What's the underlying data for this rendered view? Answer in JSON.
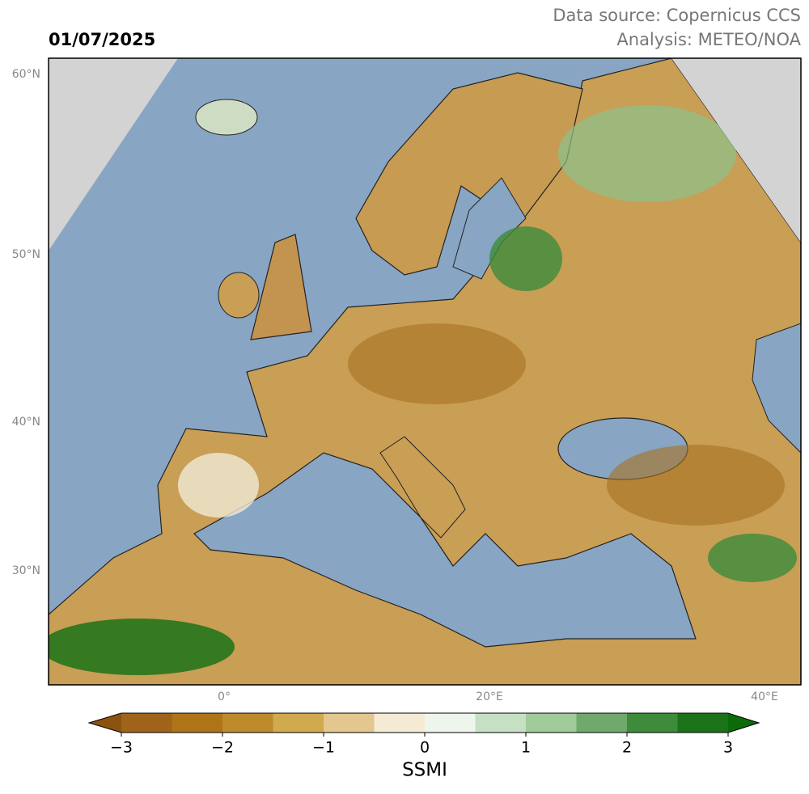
{
  "header": {
    "date": "01/07/2025",
    "source": "Data source: Copernicus CCS",
    "analysis": "Analysis: METEO/NOA"
  },
  "map": {
    "lat_labels": [
      "60°N",
      "50°N",
      "40°N",
      "30°N"
    ],
    "lon_labels": [
      "0°",
      "20°E",
      "40°E"
    ]
  },
  "colorbar": {
    "label": "SSMI",
    "range": [
      -3,
      3
    ],
    "ticks": [
      {
        "value": -3,
        "label": "−3"
      },
      {
        "value": -2,
        "label": "−2"
      },
      {
        "value": -1,
        "label": "−1"
      },
      0,
      1,
      2,
      3
    ],
    "colors": [
      "#a0631a",
      "#b07418",
      "#bf8a2c",
      "#d1a94f",
      "#e3c78e",
      "#f5ebd4",
      "#eef5ec",
      "#c5e0c2",
      "#a0cb9b",
      "#6fa96b",
      "#3d8b3b",
      "#1b7219"
    ],
    "under_color": "#8c520f",
    "over_color": "#0b6b0b"
  }
}
